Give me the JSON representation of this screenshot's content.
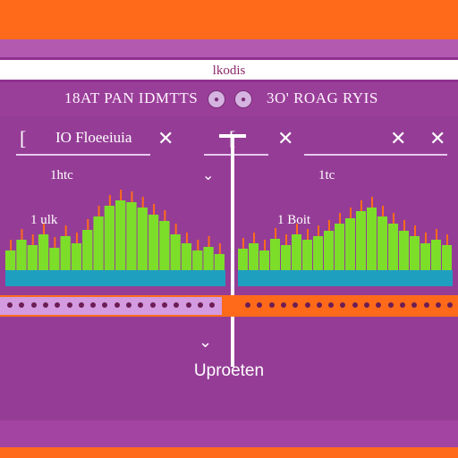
{
  "window": {
    "title": "lkodis"
  },
  "toolbar": {
    "left_label": "18AT PAN IDMTTS",
    "right_label": "3O' ROAG RYIS",
    "buttons": [
      {
        "icon": "circle-button-icon"
      },
      {
        "icon": "circle-button-icon"
      }
    ]
  },
  "left_panel": {
    "header_label": "IO Floeeiuia",
    "bracket": "[",
    "close_icon": "x-icon",
    "label_a": "1htc",
    "label_b": "1 ulk"
  },
  "right_panel": {
    "bracket": "[",
    "close_icons": [
      "x-icon",
      "x-icon",
      "x-icon"
    ],
    "label_a": "1tc",
    "label_b": "1 Boit"
  },
  "footer": {
    "label": "Uproeten"
  },
  "chart_data": {
    "type": "bar",
    "panels": [
      {
        "values": [
          22,
          34,
          28,
          40,
          25,
          38,
          30,
          45,
          60,
          72,
          78,
          76,
          70,
          62,
          55,
          40,
          30,
          22,
          26,
          18
        ],
        "ylim": [
          0,
          100
        ]
      },
      {
        "values": [
          24,
          30,
          22,
          35,
          28,
          40,
          34,
          38,
          44,
          52,
          58,
          66,
          70,
          60,
          52,
          44,
          38,
          30,
          34,
          28
        ],
        "ylim": [
          0,
          100
        ]
      }
    ],
    "bar_color": "#7dde2a",
    "accent_color": "#ff6a1a"
  },
  "colors": {
    "frame": "#ff6a1a",
    "panel": "#953d96",
    "toolbar": "#9a3f99",
    "baseline": "#1e9fc0"
  }
}
